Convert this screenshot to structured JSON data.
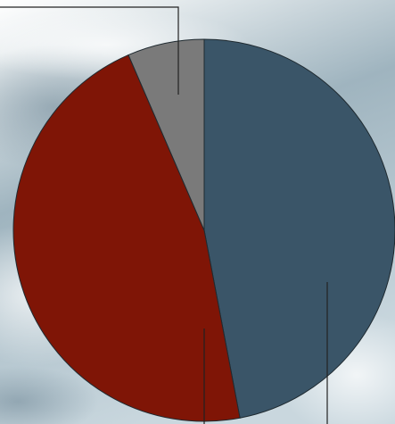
{
  "chart_data": {
    "type": "pie",
    "start_angle": "12 o'clock",
    "direction": "clockwise",
    "title": "",
    "legend": "none",
    "slices": [
      {
        "label": "",
        "value": 47.0,
        "color": "#3a5568"
      },
      {
        "label": "",
        "value": 46.5,
        "color": "#7f1506"
      },
      {
        "label": "",
        "value": 6.5,
        "color": "#7a7a7a"
      }
    ],
    "slice_edge_color": "#1f2a30",
    "leader_color": "#222222",
    "background_colors": [
      "#ffffff",
      "#e9eef0",
      "#9fb4bf",
      "#c9d7de"
    ]
  }
}
